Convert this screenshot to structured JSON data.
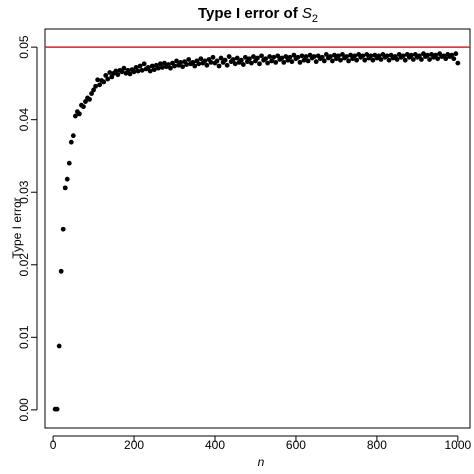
{
  "chart_data": {
    "type": "scatter",
    "title": "Type I error of S2",
    "title_parts": {
      "prefix": "Type I error of ",
      "symbol": "S",
      "subscript": "2"
    },
    "xlabel": "n",
    "ylabel": "Type I error",
    "xlim": [
      -20,
      1030
    ],
    "ylim": [
      -0.0025,
      0.0525
    ],
    "xticks": [
      0,
      200,
      400,
      600,
      800,
      1000
    ],
    "yticks": [
      0.0,
      0.01,
      0.02,
      0.03,
      0.04,
      0.05
    ],
    "xtick_labels": [
      "0",
      "200",
      "400",
      "600",
      "800",
      "1000"
    ],
    "ytick_labels": [
      "0.00",
      "0.01",
      "0.02",
      "0.03",
      "0.04",
      "0.05"
    ],
    "reference_line": {
      "y": 0.05,
      "color": "#e02020"
    },
    "point_color": "#000000",
    "grid": false,
    "series": [
      {
        "x": [
          5,
          10,
          15,
          20,
          25,
          30,
          35,
          40,
          45,
          50,
          55,
          60,
          65,
          70,
          75,
          80,
          85,
          90,
          95,
          100,
          105,
          110,
          115,
          120,
          125,
          130,
          135,
          140,
          145,
          150,
          155,
          160,
          165,
          170,
          175,
          180,
          185,
          190,
          195,
          200,
          205,
          210,
          215,
          220,
          225,
          230,
          235,
          240,
          245,
          250,
          255,
          260,
          265,
          270,
          275,
          280,
          285,
          290,
          295,
          300,
          305,
          310,
          315,
          320,
          325,
          330,
          335,
          340,
          345,
          350,
          355,
          360,
          365,
          370,
          375,
          380,
          385,
          390,
          395,
          400,
          405,
          410,
          415,
          420,
          425,
          430,
          435,
          440,
          445,
          450,
          455,
          460,
          465,
          470,
          475,
          480,
          485,
          490,
          495,
          500,
          505,
          510,
          515,
          520,
          525,
          530,
          535,
          540,
          545,
          550,
          555,
          560,
          565,
          570,
          575,
          580,
          585,
          590,
          595,
          600,
          605,
          610,
          615,
          620,
          625,
          630,
          635,
          640,
          645,
          650,
          655,
          660,
          665,
          670,
          675,
          680,
          685,
          690,
          695,
          700,
          705,
          710,
          715,
          720,
          725,
          730,
          735,
          740,
          745,
          750,
          755,
          760,
          765,
          770,
          775,
          780,
          785,
          790,
          795,
          800,
          805,
          810,
          815,
          820,
          825,
          830,
          835,
          840,
          845,
          850,
          855,
          860,
          865,
          870,
          875,
          880,
          885,
          890,
          895,
          900,
          905,
          910,
          915,
          920,
          925,
          930,
          935,
          940,
          945,
          950,
          955,
          960,
          965,
          970,
          975,
          980,
          985,
          990,
          995,
          1000
        ],
        "y": [
          0.0001,
          0.0001,
          0.0088,
          0.0191,
          0.0249,
          0.0306,
          0.0318,
          0.034,
          0.0369,
          0.0378,
          0.0405,
          0.0411,
          0.0408,
          0.042,
          0.0418,
          0.0425,
          0.043,
          0.0428,
          0.0436,
          0.0441,
          0.0446,
          0.0455,
          0.0448,
          0.0454,
          0.0452,
          0.0461,
          0.0456,
          0.0465,
          0.0459,
          0.0464,
          0.0467,
          0.0462,
          0.0468,
          0.0466,
          0.0471,
          0.0464,
          0.0468,
          0.0463,
          0.0469,
          0.0466,
          0.0472,
          0.0467,
          0.0474,
          0.0468,
          0.0477,
          0.047,
          0.0472,
          0.0467,
          0.0474,
          0.0469,
          0.0475,
          0.0471,
          0.0477,
          0.0472,
          0.0478,
          0.0473,
          0.0476,
          0.0471,
          0.0478,
          0.0474,
          0.0481,
          0.0475,
          0.0479,
          0.0473,
          0.048,
          0.0476,
          0.0483,
          0.0477,
          0.0479,
          0.0474,
          0.0481,
          0.0477,
          0.0484,
          0.0478,
          0.0481,
          0.0475,
          0.0483,
          0.0479,
          0.0486,
          0.0478,
          0.0481,
          0.0474,
          0.0485,
          0.0479,
          0.0482,
          0.0475,
          0.0487,
          0.048,
          0.0483,
          0.0477,
          0.0485,
          0.0479,
          0.0482,
          0.0476,
          0.0486,
          0.048,
          0.0484,
          0.0478,
          0.0487,
          0.0481,
          0.0485,
          0.0477,
          0.0488,
          0.0482,
          0.0484,
          0.0478,
          0.0487,
          0.0481,
          0.0486,
          0.0479,
          0.0488,
          0.0483,
          0.0485,
          0.0479,
          0.0487,
          0.0482,
          0.0486,
          0.048,
          0.0489,
          0.0484,
          0.0486,
          0.0479,
          0.0488,
          0.0482,
          0.0487,
          0.0481,
          0.0489,
          0.0485,
          0.0487,
          0.048,
          0.0488,
          0.0484,
          0.0486,
          0.0481,
          0.049,
          0.0485,
          0.0487,
          0.0481,
          0.0489,
          0.0484,
          0.0488,
          0.0482,
          0.049,
          0.0485,
          0.0487,
          0.0481,
          0.0489,
          0.0484,
          0.0488,
          0.0482,
          0.049,
          0.0486,
          0.0488,
          0.0482,
          0.049,
          0.0485,
          0.0488,
          0.0482,
          0.0489,
          0.0485,
          0.0488,
          0.0483,
          0.049,
          0.0486,
          0.0488,
          0.0482,
          0.0489,
          0.0485,
          0.0487,
          0.0483,
          0.049,
          0.0486,
          0.0488,
          0.0482,
          0.049,
          0.0486,
          0.0489,
          0.0483,
          0.049,
          0.0486,
          0.0488,
          0.0483,
          0.0491,
          0.0487,
          0.0489,
          0.0483,
          0.049,
          0.0486,
          0.0489,
          0.0484,
          0.0491,
          0.0487,
          0.0488,
          0.0484,
          0.049,
          0.0487,
          0.0489,
          0.0484,
          0.0491,
          0.0478
        ]
      }
    ]
  }
}
